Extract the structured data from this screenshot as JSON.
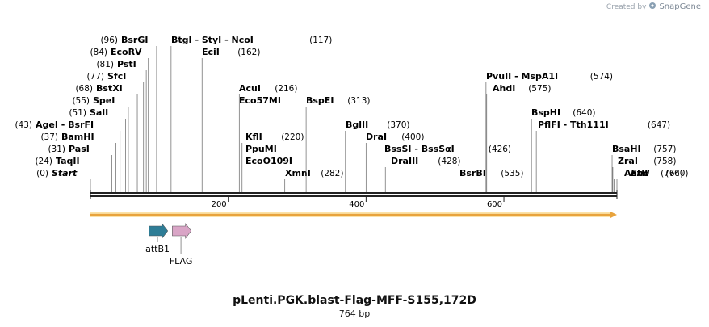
{
  "credit": {
    "prefix": "Created by",
    "brand": "SnapGene"
  },
  "plasmid": {
    "name": "pLenti.PGK.blast-Flag-MFF-S155,172D",
    "size_label": "764 bp",
    "length": 764
  },
  "colors": {
    "attB1": "#2e7d96",
    "FLAG": "#d9a5c6",
    "orf": "#e8a33d",
    "ruler": "#222222"
  },
  "ruler_ticks": [
    {
      "pos": 200,
      "label": "200"
    },
    {
      "pos": 400,
      "label": "400"
    },
    {
      "pos": 600,
      "label": "600"
    }
  ],
  "end_markers": [
    {
      "pos": 0,
      "name": "Start",
      "num": "(0)",
      "side": "left"
    },
    {
      "pos": 764,
      "name": "End",
      "num": "(764)",
      "side": "right"
    }
  ],
  "sites": [
    {
      "pos": 24,
      "names": "TaqII",
      "num": "(24)",
      "side": "left"
    },
    {
      "pos": 31,
      "names": "PasI",
      "num": "(31)",
      "side": "left"
    },
    {
      "pos": 37,
      "names": "BamHI",
      "num": "(37)",
      "side": "left"
    },
    {
      "pos": 43,
      "names": "AgeI  -  BsrFI",
      "num": "(43)",
      "side": "left"
    },
    {
      "pos": 51,
      "names": "SalI",
      "num": "(51)",
      "side": "left"
    },
    {
      "pos": 55,
      "names": "SpeI",
      "num": "(55)",
      "side": "left"
    },
    {
      "pos": 68,
      "names": "BstXI",
      "num": "(68)",
      "side": "left"
    },
    {
      "pos": 77,
      "names": "SfcI",
      "num": "(77)",
      "side": "left"
    },
    {
      "pos": 81,
      "names": "PstI",
      "num": "(81)",
      "side": "left"
    },
    {
      "pos": 84,
      "names": "EcoRV",
      "num": "(84)",
      "side": "left"
    },
    {
      "pos": 96,
      "names": "BsrGI",
      "num": "(96)",
      "side": "left"
    },
    {
      "pos": 117,
      "names": "BtgI  -  StyI  -  NcoI",
      "num": "(117)",
      "side": "right"
    },
    {
      "pos": 162,
      "names": "EciI",
      "num": "(162)",
      "side": "right"
    },
    {
      "pos": 216,
      "names": "AcuI",
      "num": "(216)",
      "side": "right"
    },
    {
      "pos": 216,
      "names": "Eco57MI",
      "num": "",
      "side": "right"
    },
    {
      "pos": 220,
      "names": "KflI",
      "num": "(220)",
      "side": "right"
    },
    {
      "pos": 220,
      "names": "PpuMI",
      "num": "",
      "side": "right"
    },
    {
      "pos": 220,
      "names": "EcoO109I",
      "num": "",
      "side": "right"
    },
    {
      "pos": 282,
      "names": "XmnI",
      "num": "(282)",
      "side": "right"
    },
    {
      "pos": 313,
      "names": "BspEI",
      "num": "(313)",
      "side": "right"
    },
    {
      "pos": 370,
      "names": "BglII",
      "num": "(370)",
      "side": "right"
    },
    {
      "pos": 400,
      "names": "DraI",
      "num": "(400)",
      "side": "right"
    },
    {
      "pos": 426,
      "names": "BssSI  -  BssSαI",
      "num": "(426)",
      "side": "right"
    },
    {
      "pos": 428,
      "names": "DraIII",
      "num": "(428)",
      "side": "right"
    },
    {
      "pos": 535,
      "names": "BsrBI",
      "num": "(535)",
      "side": "right"
    },
    {
      "pos": 574,
      "names": "PvuII  -  MspA1I",
      "num": "(574)",
      "side": "right"
    },
    {
      "pos": 575,
      "names": "AhdI",
      "num": "(575)",
      "side": "right"
    },
    {
      "pos": 640,
      "names": "BspHI",
      "num": "(640)",
      "side": "right"
    },
    {
      "pos": 647,
      "names": "PflFI  -  Tth111I",
      "num": "(647)",
      "side": "right"
    },
    {
      "pos": 757,
      "names": "BsaHI",
      "num": "(757)",
      "side": "right"
    },
    {
      "pos": 758,
      "names": "ZraI",
      "num": "(758)",
      "side": "right"
    },
    {
      "pos": 760,
      "names": "AatII",
      "num": "(760)",
      "side": "right"
    }
  ],
  "features": [
    {
      "name": "attB1",
      "start": 86,
      "end": 111,
      "color_key": "attB1",
      "label_row": 1
    },
    {
      "name": "FLAG",
      "start": 120,
      "end": 145,
      "color_key": "FLAG",
      "label_row": 2
    }
  ]
}
